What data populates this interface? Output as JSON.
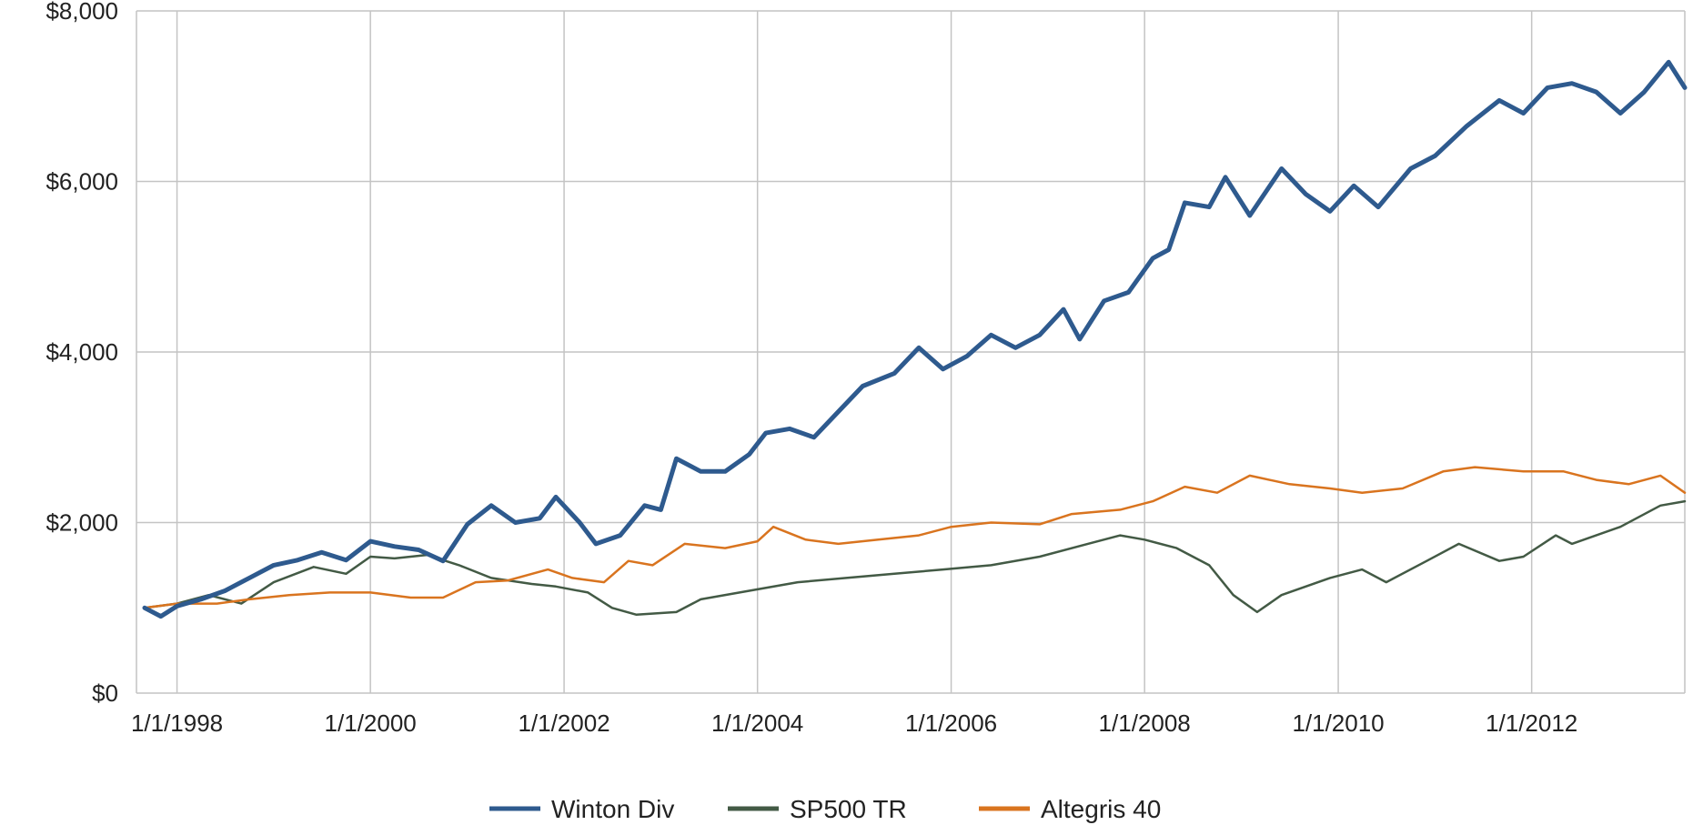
{
  "chart_data": {
    "type": "line",
    "title": "",
    "xlabel": "",
    "ylabel": "",
    "xlim": [
      "1997-08-01",
      "2013-08-01"
    ],
    "ylim": [
      0,
      8000
    ],
    "y_ticks": [
      {
        "value": 0,
        "label": "$0"
      },
      {
        "value": 2000,
        "label": "$2,000"
      },
      {
        "value": 4000,
        "label": "$4,000"
      },
      {
        "value": 6000,
        "label": "$6,000"
      },
      {
        "value": 8000,
        "label": "$8,000"
      }
    ],
    "x_ticks": [
      {
        "value": "1998-01-01",
        "label": "1/1/1998"
      },
      {
        "value": "2000-01-01",
        "label": "1/1/2000"
      },
      {
        "value": "2002-01-01",
        "label": "1/1/2002"
      },
      {
        "value": "2004-01-01",
        "label": "1/1/2004"
      },
      {
        "value": "2006-01-01",
        "label": "1/1/2006"
      },
      {
        "value": "2008-01-01",
        "label": "1/1/2008"
      },
      {
        "value": "2010-01-01",
        "label": "1/1/2010"
      },
      {
        "value": "2012-01-01",
        "label": "1/1/2012"
      }
    ],
    "grid": true,
    "legend_position": "bottom",
    "series": [
      {
        "name": "Winton Div",
        "color": "#2e5a8e",
        "points": [
          [
            "1997-09-01",
            1000
          ],
          [
            "1997-11-01",
            900
          ],
          [
            "1998-01-01",
            1020
          ],
          [
            "1998-04-01",
            1100
          ],
          [
            "1998-07-01",
            1200
          ],
          [
            "1998-10-01",
            1350
          ],
          [
            "1999-01-01",
            1500
          ],
          [
            "1999-04-01",
            1560
          ],
          [
            "1999-07-01",
            1650
          ],
          [
            "1999-10-01",
            1560
          ],
          [
            "2000-01-01",
            1780
          ],
          [
            "2000-04-01",
            1720
          ],
          [
            "2000-07-01",
            1680
          ],
          [
            "2000-10-01",
            1550
          ],
          [
            "2001-01-01",
            1980
          ],
          [
            "2001-04-01",
            2200
          ],
          [
            "2001-07-01",
            2000
          ],
          [
            "2001-10-01",
            2050
          ],
          [
            "2001-12-01",
            2300
          ],
          [
            "2002-03-01",
            2000
          ],
          [
            "2002-05-01",
            1750
          ],
          [
            "2002-08-01",
            1850
          ],
          [
            "2002-11-01",
            2200
          ],
          [
            "2003-01-01",
            2150
          ],
          [
            "2003-03-01",
            2750
          ],
          [
            "2003-06-01",
            2600
          ],
          [
            "2003-09-01",
            2600
          ],
          [
            "2003-12-01",
            2800
          ],
          [
            "2004-02-01",
            3050
          ],
          [
            "2004-05-01",
            3100
          ],
          [
            "2004-08-01",
            3000
          ],
          [
            "2004-11-01",
            3300
          ],
          [
            "2005-02-01",
            3600
          ],
          [
            "2005-06-01",
            3750
          ],
          [
            "2005-09-01",
            4050
          ],
          [
            "2005-12-01",
            3800
          ],
          [
            "2006-03-01",
            3950
          ],
          [
            "2006-06-01",
            4200
          ],
          [
            "2006-09-01",
            4050
          ],
          [
            "2006-12-01",
            4200
          ],
          [
            "2007-03-01",
            4500
          ],
          [
            "2007-05-01",
            4150
          ],
          [
            "2007-08-01",
            4600
          ],
          [
            "2007-11-01",
            4700
          ],
          [
            "2008-02-01",
            5100
          ],
          [
            "2008-04-01",
            5200
          ],
          [
            "2008-06-01",
            5750
          ],
          [
            "2008-09-01",
            5700
          ],
          [
            "2008-11-01",
            6050
          ],
          [
            "2009-02-01",
            5600
          ],
          [
            "2009-06-01",
            6150
          ],
          [
            "2009-09-01",
            5850
          ],
          [
            "2009-12-01",
            5650
          ],
          [
            "2010-03-01",
            5950
          ],
          [
            "2010-06-01",
            5700
          ],
          [
            "2010-10-01",
            6150
          ],
          [
            "2011-01-01",
            6300
          ],
          [
            "2011-05-01",
            6650
          ],
          [
            "2011-09-01",
            6950
          ],
          [
            "2011-12-01",
            6800
          ],
          [
            "2012-03-01",
            7100
          ],
          [
            "2012-06-01",
            7150
          ],
          [
            "2012-09-01",
            7050
          ],
          [
            "2012-12-01",
            6800
          ],
          [
            "2013-03-01",
            7050
          ],
          [
            "2013-06-01",
            7400
          ],
          [
            "2013-08-01",
            7100
          ]
        ]
      },
      {
        "name": "SP500 TR",
        "color": "#435a45",
        "points": [
          [
            "1997-09-01",
            1000
          ],
          [
            "1998-01-01",
            1050
          ],
          [
            "1998-05-01",
            1150
          ],
          [
            "1998-09-01",
            1050
          ],
          [
            "1999-01-01",
            1300
          ],
          [
            "1999-06-01",
            1480
          ],
          [
            "1999-10-01",
            1400
          ],
          [
            "2000-01-01",
            1600
          ],
          [
            "2000-04-01",
            1580
          ],
          [
            "2000-08-01",
            1620
          ],
          [
            "2000-12-01",
            1500
          ],
          [
            "2001-04-01",
            1350
          ],
          [
            "2001-09-01",
            1280
          ],
          [
            "2001-12-01",
            1250
          ],
          [
            "2002-04-01",
            1180
          ],
          [
            "2002-07-01",
            1000
          ],
          [
            "2002-10-01",
            920
          ],
          [
            "2003-03-01",
            950
          ],
          [
            "2003-06-01",
            1100
          ],
          [
            "2003-12-01",
            1200
          ],
          [
            "2004-06-01",
            1300
          ],
          [
            "2004-12-01",
            1350
          ],
          [
            "2005-06-01",
            1400
          ],
          [
            "2005-12-01",
            1450
          ],
          [
            "2006-06-01",
            1500
          ],
          [
            "2006-12-01",
            1600
          ],
          [
            "2007-06-01",
            1750
          ],
          [
            "2007-10-01",
            1850
          ],
          [
            "2008-01-01",
            1800
          ],
          [
            "2008-05-01",
            1700
          ],
          [
            "2008-09-01",
            1500
          ],
          [
            "2008-12-01",
            1150
          ],
          [
            "2009-03-01",
            950
          ],
          [
            "2009-06-01",
            1150
          ],
          [
            "2009-12-01",
            1350
          ],
          [
            "2010-04-01",
            1450
          ],
          [
            "2010-07-01",
            1300
          ],
          [
            "2010-12-01",
            1550
          ],
          [
            "2011-04-01",
            1750
          ],
          [
            "2011-09-01",
            1550
          ],
          [
            "2011-12-01",
            1600
          ],
          [
            "2012-04-01",
            1850
          ],
          [
            "2012-06-01",
            1750
          ],
          [
            "2012-12-01",
            1950
          ],
          [
            "2013-05-01",
            2200
          ],
          [
            "2013-08-01",
            2250
          ]
        ]
      },
      {
        "name": "Altegris 40",
        "color": "#d9741f",
        "points": [
          [
            "1997-09-01",
            1000
          ],
          [
            "1998-01-01",
            1050
          ],
          [
            "1998-06-01",
            1050
          ],
          [
            "1998-10-01",
            1100
          ],
          [
            "1999-03-01",
            1150
          ],
          [
            "1999-08-01",
            1180
          ],
          [
            "2000-01-01",
            1180
          ],
          [
            "2000-06-01",
            1120
          ],
          [
            "2000-10-01",
            1120
          ],
          [
            "2001-02-01",
            1300
          ],
          [
            "2001-06-01",
            1320
          ],
          [
            "2001-11-01",
            1450
          ],
          [
            "2002-02-01",
            1350
          ],
          [
            "2002-06-01",
            1300
          ],
          [
            "2002-09-01",
            1550
          ],
          [
            "2002-12-01",
            1500
          ],
          [
            "2003-04-01",
            1750
          ],
          [
            "2003-09-01",
            1700
          ],
          [
            "2004-01-01",
            1780
          ],
          [
            "2004-03-01",
            1950
          ],
          [
            "2004-07-01",
            1800
          ],
          [
            "2004-11-01",
            1750
          ],
          [
            "2005-04-01",
            1800
          ],
          [
            "2005-09-01",
            1850
          ],
          [
            "2006-01-01",
            1950
          ],
          [
            "2006-06-01",
            2000
          ],
          [
            "2006-12-01",
            1980
          ],
          [
            "2007-04-01",
            2100
          ],
          [
            "2007-10-01",
            2150
          ],
          [
            "2008-02-01",
            2250
          ],
          [
            "2008-06-01",
            2420
          ],
          [
            "2008-10-01",
            2350
          ],
          [
            "2009-02-01",
            2550
          ],
          [
            "2009-07-01",
            2450
          ],
          [
            "2009-12-01",
            2400
          ],
          [
            "2010-04-01",
            2350
          ],
          [
            "2010-09-01",
            2400
          ],
          [
            "2011-02-01",
            2600
          ],
          [
            "2011-06-01",
            2650
          ],
          [
            "2011-12-01",
            2600
          ],
          [
            "2012-05-01",
            2600
          ],
          [
            "2012-09-01",
            2500
          ],
          [
            "2013-01-01",
            2450
          ],
          [
            "2013-05-01",
            2550
          ],
          [
            "2013-08-01",
            2350
          ]
        ]
      }
    ]
  }
}
